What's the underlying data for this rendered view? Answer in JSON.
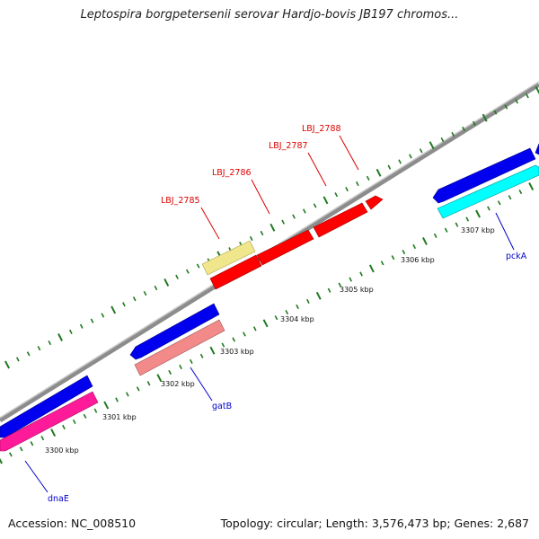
{
  "title": "Leptospira borgpetersenii serovar Hardjo-bovis JB197 chromos...",
  "footer": {
    "accession": "Accession: NC_008510",
    "summary": "Topology: circular; Length: 3,576,473 bp; Genes: 2,687"
  },
  "colors": {
    "backbone": "#8c8c8c",
    "tick": "#1f7a1f",
    "forward_gene": "#0000ee",
    "reverse_gene_magenta": "#ff1a9a",
    "reverse_gene_salmon": "#f28a8a",
    "reverse_gene_cyan": "#00ffff",
    "label_blue": "#0000cc",
    "label_red": "#dd0000",
    "pseudo_gene_red": "#ff0000",
    "pseudo_gene_khaki": "#f0e68c"
  },
  "scale_labels": [
    "3300 kbp",
    "3301 kbp",
    "3302 kbp",
    "3303 kbp",
    "3304 kbp",
    "3305 kbp",
    "3306 kbp",
    "3307 kbp"
  ],
  "gene_labels": {
    "dnaE": "dnaE",
    "gatB": "gatB",
    "pckA": "pckA",
    "lbj2785": "LBJ_2785",
    "lbj2786": "LBJ_2786",
    "lbj2787": "LBJ_2787",
    "lbj2788": "LBJ_2788"
  }
}
